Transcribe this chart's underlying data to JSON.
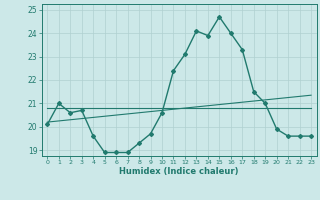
{
  "xlabel": "Humidex (Indice chaleur)",
  "x": [
    0,
    1,
    2,
    3,
    4,
    5,
    6,
    7,
    8,
    9,
    10,
    11,
    12,
    13,
    14,
    15,
    16,
    17,
    18,
    19,
    20,
    21,
    22,
    23
  ],
  "line1": [
    20.1,
    21.0,
    20.6,
    20.7,
    19.6,
    18.9,
    18.9,
    18.9,
    19.3,
    19.7,
    20.6,
    22.4,
    23.1,
    24.1,
    23.9,
    24.7,
    24.0,
    23.3,
    21.5,
    21.0,
    19.9,
    19.6,
    19.6,
    19.6
  ],
  "line2_flat": [
    20.8,
    20.8,
    20.8,
    20.8,
    20.8,
    20.8,
    20.8,
    20.8,
    20.8,
    20.8,
    20.8,
    20.8,
    20.8,
    20.8,
    20.8,
    20.8,
    20.8,
    20.8,
    20.8,
    20.8,
    20.8,
    20.8,
    20.8,
    20.8
  ],
  "line3_rise": [
    20.2,
    20.25,
    20.3,
    20.35,
    20.4,
    20.45,
    20.5,
    20.55,
    20.6,
    20.65,
    20.7,
    20.75,
    20.8,
    20.85,
    20.9,
    20.95,
    21.0,
    21.05,
    21.1,
    21.15,
    21.2,
    21.25,
    21.3,
    21.35
  ],
  "line_color": "#217a6e",
  "bg_color": "#cce8e8",
  "grid_color": "#b0d0d0",
  "ylim": [
    18.75,
    25.25
  ],
  "yticks": [
    19,
    20,
    21,
    22,
    23,
    24,
    25
  ],
  "xticks": [
    0,
    1,
    2,
    3,
    4,
    5,
    6,
    7,
    8,
    9,
    10,
    11,
    12,
    13,
    14,
    15,
    16,
    17,
    18,
    19,
    20,
    21,
    22,
    23
  ]
}
